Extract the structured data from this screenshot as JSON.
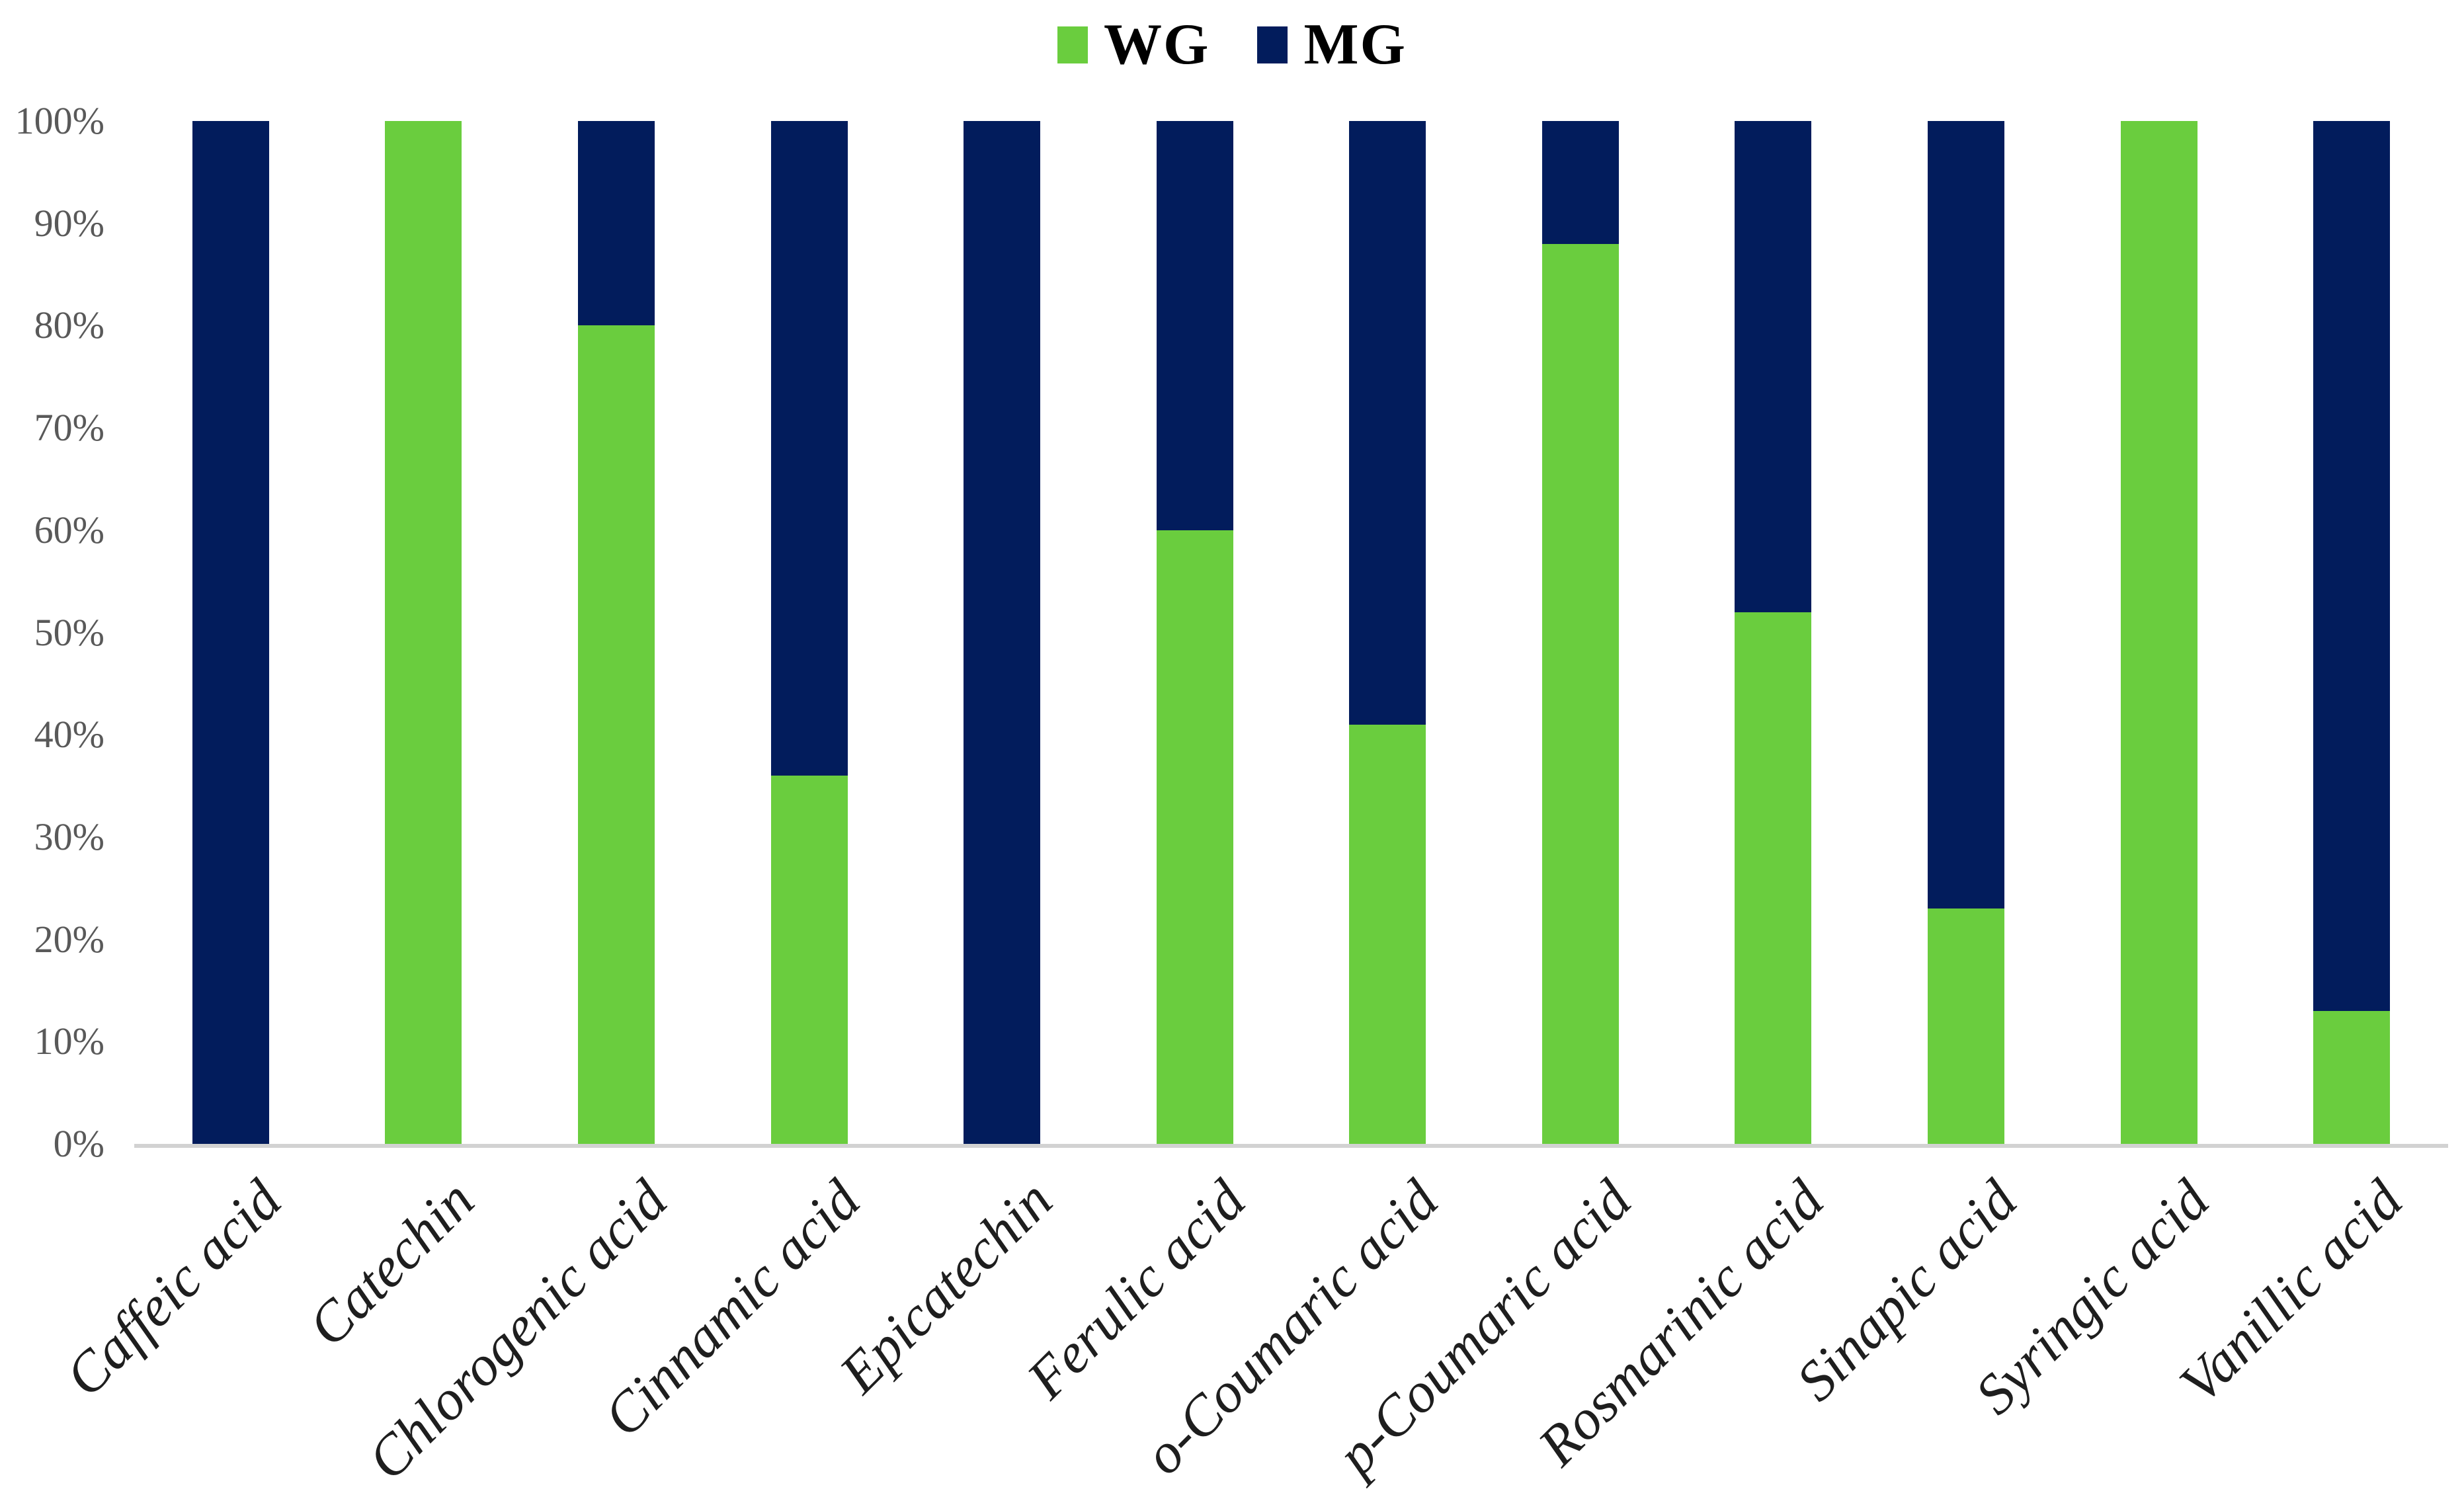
{
  "chart_data": {
    "type": "bar",
    "stacked": true,
    "units": "percent",
    "title": "",
    "xlabel": "",
    "ylabel": "",
    "categories": [
      "Caffeic acid",
      "Catechin",
      "Chlorogenic acid",
      "Cinnamic acid",
      "Epicatechin",
      "Ferulic acid",
      "o-Coumaric acid",
      "p-Coumaric acid",
      "Rosmarinic acid",
      "Sinapic acid",
      "Syringic acid",
      "Vanillic acid"
    ],
    "series": [
      {
        "name": "WG",
        "color": "#6acd3e",
        "values": [
          0,
          100,
          80,
          36,
          0,
          60,
          41,
          88,
          52,
          23,
          100,
          13
        ]
      },
      {
        "name": "MG",
        "color": "#021c5c",
        "values": [
          100,
          0,
          20,
          64,
          100,
          40,
          59,
          12,
          48,
          77,
          0,
          87
        ]
      }
    ],
    "ylim": [
      0,
      100
    ],
    "yticks": [
      "0%",
      "10%",
      "20%",
      "30%",
      "40%",
      "50%",
      "60%",
      "70%",
      "80%",
      "90%",
      "100%"
    ],
    "grid": false,
    "legend_position": "top"
  },
  "colors": {
    "axis_line": "#d2d2d2",
    "tick_label": "#595959",
    "category_label": "#1e1e1e",
    "legend_text": "#000000",
    "background": "#ffffff"
  }
}
